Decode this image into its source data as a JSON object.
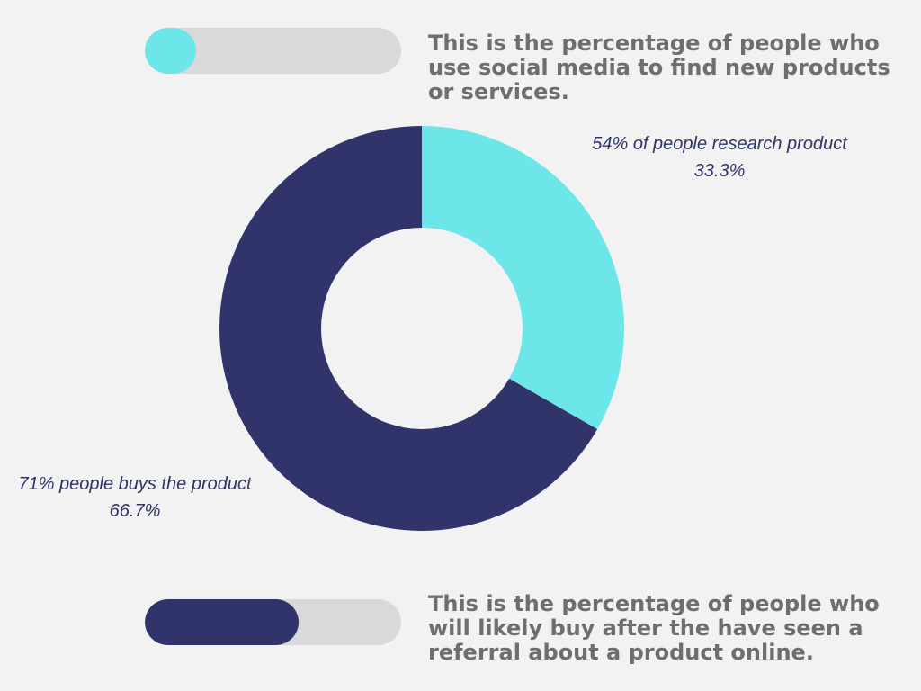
{
  "colors": {
    "background": "#f2f2f2",
    "track": "#d9d9d9",
    "cyan": "#6ce6e9",
    "navy": "#30346b",
    "caption_text": "#6e6e6e",
    "label_text": "#2e3468"
  },
  "progress_top": {
    "fill_fraction": 0.2,
    "color": "#6ce6e9",
    "caption": "This is the percentage of people who use social media to find new products or services."
  },
  "progress_bottom": {
    "fill_fraction": 0.6,
    "color": "#30346b",
    "caption": "This is the percentage of people who will likely buy after the have seen a referral about a product online."
  },
  "chart_data": {
    "type": "pie",
    "donut": true,
    "title": "",
    "slices": [
      {
        "name": "54% of people research product",
        "value": 33.3,
        "percent_label": "33.3%",
        "color": "#6ce6e9"
      },
      {
        "name": "71% people buys the product",
        "value": 66.7,
        "percent_label": "66.7%",
        "color": "#30346b"
      }
    ],
    "start_angle": "12 o'clock",
    "direction": "clockwise",
    "legend": "none"
  }
}
